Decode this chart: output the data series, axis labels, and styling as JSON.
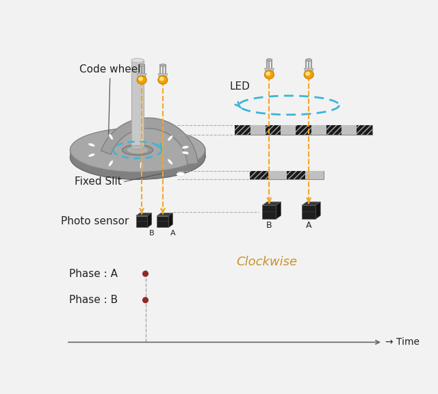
{
  "bg_color": "#f2f2f2",
  "title_text": "Clockwise",
  "title_color": "#c8922a",
  "title_fontsize": 13,
  "label_color": "#222222",
  "phase_a_label": "Phase : A",
  "phase_b_label": "Phase : B",
  "time_label": "→ Time",
  "led_label": "LED",
  "code_wheel_label": "Code wheel",
  "fixed_slit_label": "Fixed Slit",
  "photo_sensor_label": "Photo sensor",
  "orange": "#f5a623",
  "blue": "#3ab5d8",
  "sensor_dark": "#1c1c1c",
  "sensor_mid": "#3a3a3a",
  "sensor_light": "#555555",
  "shaft_color": "#b8b8b8",
  "disk_color": "#909090",
  "disk_top_color": "#c0c0c0",
  "red_color": "#922828",
  "gray_line": "#aaaaaa",
  "strip_light": "#d0d0d0",
  "strip_dark": "#1a1a1a"
}
